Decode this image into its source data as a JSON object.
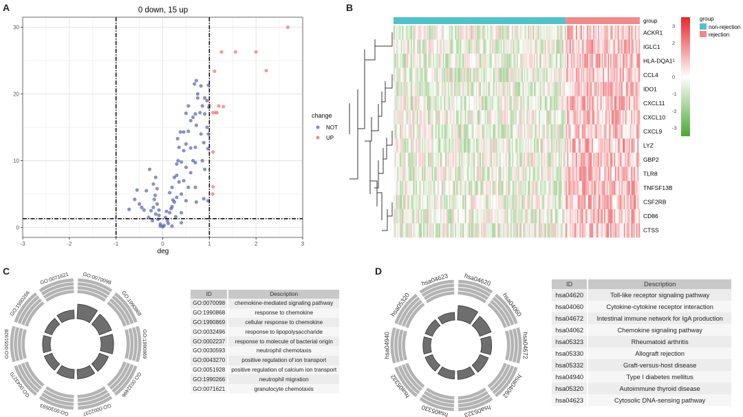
{
  "panels": {
    "a": "A",
    "b": "B",
    "c": "C",
    "d": "D"
  },
  "chart_data": [
    {
      "type": "scatter",
      "title": "0 down, 15 up",
      "xlabel": "deg",
      "ylabel": "",
      "xlim": [
        -3,
        3
      ],
      "ylim": [
        -1.5,
        31.5
      ],
      "xticks": [
        "-3",
        "-2",
        "-1",
        "0",
        "1",
        "2",
        "3"
      ],
      "yticks": [
        "0",
        "10",
        "20",
        "30"
      ],
      "thresholds": {
        "x": [
          -1,
          1
        ],
        "y": 1.3
      },
      "legend": {
        "title": "change",
        "position": "right",
        "entries": [
          {
            "label": "NOT",
            "color": "#4a56a8"
          },
          {
            "label": "UP",
            "color": "#f08a8a"
          }
        ]
      },
      "series": [
        {
          "name": "NOT",
          "color": "#4a56a8",
          "points": [
            [
              -0.05,
              0.5
            ],
            [
              0.03,
              0.3
            ],
            [
              0,
              0.1
            ],
            [
              -0.1,
              1.2
            ],
            [
              0.1,
              1
            ],
            [
              -0.15,
              2
            ],
            [
              0.15,
              2.2
            ],
            [
              -0.2,
              3
            ],
            [
              0.2,
              3.1
            ],
            [
              -0.12,
              3.5
            ],
            [
              0.25,
              3.8
            ],
            [
              -0.18,
              4.2
            ],
            [
              0.3,
              4.5
            ],
            [
              -0.08,
              1.8
            ],
            [
              0.06,
              1.5
            ],
            [
              -0.25,
              2.5
            ],
            [
              0.18,
              2.8
            ],
            [
              -0.3,
              1.5
            ],
            [
              0.28,
              1.6
            ],
            [
              -0.4,
              2.6
            ],
            [
              0.4,
              2.2
            ],
            [
              -0.5,
              3.5
            ],
            [
              -0.55,
              5.6
            ],
            [
              -0.72,
              2.7
            ],
            [
              -0.6,
              4.2
            ],
            [
              -0.35,
              5.5
            ],
            [
              -0.28,
              8.7
            ],
            [
              -0.15,
              7.5
            ],
            [
              -0.2,
              6.5
            ],
            [
              -0.12,
              5.8
            ],
            [
              -0.45,
              3
            ],
            [
              0.15,
              5.2
            ],
            [
              0.2,
              6
            ],
            [
              0.25,
              7.5
            ],
            [
              0.3,
              7.8
            ],
            [
              0.35,
              6.8
            ],
            [
              0.3,
              9.5
            ],
            [
              0.33,
              10
            ],
            [
              0.4,
              9.8
            ],
            [
              0.45,
              11.5
            ],
            [
              0.35,
              12
            ],
            [
              0.5,
              12.5
            ],
            [
              0.32,
              13.3
            ],
            [
              0.38,
              14.3
            ],
            [
              0.45,
              14.3
            ],
            [
              0.55,
              14.4
            ],
            [
              0.6,
              16
            ],
            [
              0.7,
              17
            ],
            [
              0.55,
              18.2
            ],
            [
              0.5,
              17.1
            ],
            [
              0.65,
              16.5
            ],
            [
              0.72,
              15.3
            ],
            [
              0.8,
              17.2
            ],
            [
              0.75,
              19.4
            ],
            [
              0.68,
              21.5
            ],
            [
              0.72,
              22
            ],
            [
              0.82,
              21.2
            ],
            [
              0.75,
              20
            ],
            [
              0.9,
              19.4
            ],
            [
              0.95,
              19
            ],
            [
              0.85,
              18.2
            ],
            [
              0.9,
              17
            ],
            [
              0.95,
              15
            ],
            [
              0.82,
              14
            ],
            [
              0.88,
              12.7
            ],
            [
              0.7,
              12
            ],
            [
              0.6,
              11.9
            ],
            [
              0.65,
              10
            ],
            [
              0.85,
              10
            ],
            [
              0.5,
              9
            ],
            [
              0.7,
              9.7
            ],
            [
              0.9,
              8.7
            ],
            [
              0.6,
              8.2
            ],
            [
              0.45,
              7
            ],
            [
              0.55,
              6
            ],
            [
              0.7,
              6
            ],
            [
              0.4,
              5
            ],
            [
              0.5,
              4
            ],
            [
              0.72,
              3.8
            ],
            [
              0.88,
              4.3
            ],
            [
              0.97,
              4
            ],
            [
              0.98,
              14
            ],
            [
              0.99,
              18
            ],
            [
              0.98,
              21.3
            ],
            [
              0.97,
              11.8
            ],
            [
              0.4,
              0.7
            ],
            [
              0.2,
              0.2
            ],
            [
              -0.05,
              0.2
            ],
            [
              -0.08,
              2.6
            ],
            [
              0.08,
              2.4
            ],
            [
              -0.22,
              1
            ],
            [
              0.12,
              0.6
            ],
            [
              0.22,
              4.1
            ],
            [
              -0.16,
              4.8
            ]
          ]
        },
        {
          "name": "UP",
          "color": "#f08a8a",
          "points": [
            [
              2.68,
              30
            ],
            [
              1.26,
              26.3
            ],
            [
              1.56,
              26.3
            ],
            [
              2.0,
              26.3
            ],
            [
              2.22,
              23.5
            ],
            [
              1.11,
              23.4
            ],
            [
              1.2,
              18.2
            ],
            [
              1.3,
              18.1
            ],
            [
              1.08,
              17.2
            ],
            [
              1.13,
              17.2
            ],
            [
              1.16,
              17.2
            ],
            [
              1.0,
              18.3
            ],
            [
              1.08,
              11.3
            ],
            [
              1.08,
              6.1
            ],
            [
              1.07,
              5
            ]
          ]
        }
      ]
    },
    {
      "type": "heatmap",
      "genes": [
        "ACKR1",
        "IGLC1",
        "HLA-DQA1",
        "CCL4",
        "IDO1",
        "CXCL11",
        "CXCL10",
        "CXCL9",
        "LYZ",
        "GBP2",
        "TLR8",
        "TNFSF13B",
        "CSF2RB",
        "CD86",
        "CTSS"
      ],
      "annotation_label": "group",
      "groups": [
        {
          "name": "non-rejection",
          "color": "#4fc3cc",
          "columns": 140
        },
        {
          "name": "rejection",
          "color": "#f08a8a",
          "columns": 60
        }
      ],
      "legend": {
        "title": "group",
        "scale_ticks": [
          "3",
          "2",
          "1",
          "0",
          "-1",
          "-2",
          "-3"
        ],
        "scale_range": [
          -3.5,
          3.5
        ],
        "colors": {
          "high": "#e8252a",
          "mid": "#ffffff",
          "low": "#4aa832"
        }
      }
    },
    {
      "type": "circos",
      "ids": [
        "GO:0070098",
        "GO:1990868",
        "GO:1990869",
        "GO:0032496",
        "GO:0002237",
        "GO:0030593",
        "GO:0043270",
        "GO:0051928",
        "GO:1990266",
        "GO:0071621"
      ],
      "inner_values": [
        1.0,
        0.85,
        0.8,
        0.5,
        0.48,
        0.45,
        0.35,
        0.3,
        0.3,
        0.4
      ]
    },
    {
      "type": "table",
      "columns": [
        "ID",
        "Description"
      ],
      "rows": [
        [
          "GO:0070098",
          "chemokine-mediated signaling pathway"
        ],
        [
          "GO:1990868",
          "response to chemokine"
        ],
        [
          "GO:1990869",
          "cellular response to chemokine"
        ],
        [
          "GO:0032496",
          "response to lipopolysaccharide"
        ],
        [
          "GO:0002237",
          "response to molecule of bacterial origin"
        ],
        [
          "GO:0030593",
          "neutrophil chemotaxis"
        ],
        [
          "GO:0043270",
          "positive regulation of ion transport"
        ],
        [
          "GO:0051928",
          "positive regulation of calcium ion transport"
        ],
        [
          "GO:1990266",
          "neutrophil migration"
        ],
        [
          "GO:0071621",
          "granulocyte chemotaxis"
        ]
      ]
    },
    {
      "type": "circos",
      "ids": [
        "hsa04620",
        "hsa04060",
        "hsa04672",
        "hsa04062",
        "hsa05323",
        "hsa05330",
        "hsa05332",
        "hsa04940",
        "hsa05320",
        "hsa04623"
      ],
      "inner_values": [
        1.0,
        0.75,
        0.55,
        0.45,
        0.4,
        0.35,
        0.3,
        0.3,
        0.3,
        0.3
      ]
    },
    {
      "type": "table",
      "columns": [
        "ID",
        "Description"
      ],
      "rows": [
        [
          "hsa04620",
          "Toll-like receptor signaling pathway"
        ],
        [
          "hsa04060",
          "Cytokine-cytokine receptor interaction"
        ],
        [
          "hsa04672",
          "Intestinal immune network for IgA production"
        ],
        [
          "hsa04062",
          "Chemokine signaling pathway"
        ],
        [
          "hsa05323",
          "Rheumatoid arthritis"
        ],
        [
          "hsa05330",
          "Allograft rejection"
        ],
        [
          "hsa05332",
          "Graft-versus-host disease"
        ],
        [
          "hsa04940",
          "Type I diabetes mellitus"
        ],
        [
          "hsa05320",
          "Autoimmune thyroid disease"
        ],
        [
          "hsa04623",
          "Cytosolic DNA-sensing pathway"
        ]
      ]
    }
  ]
}
